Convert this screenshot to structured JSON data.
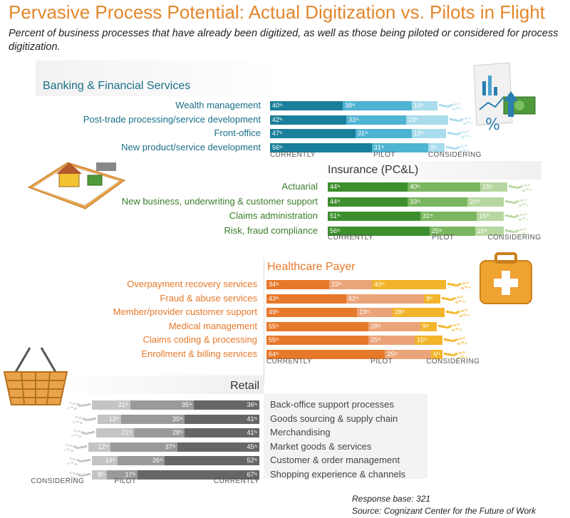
{
  "title": "Pervasive Process Potential: Actual Digitization vs. Pilots in Flight",
  "subtitle": "Percent of business processes that have already been digitized, as well as those being piloted or considered for process digitization.",
  "footer": {
    "base": "Response base: 321",
    "source": "Source: Cognizant Center for the Future of Work"
  },
  "colors": {
    "title": "#e3862b",
    "banking": [
      "#1a7f9a",
      "#4fb3d2",
      "#a9dcec"
    ],
    "insurance": [
      "#3d8f2e",
      "#7ab65f",
      "#b7d7a0"
    ],
    "healthcare": [
      "#e6782a",
      "#eba479",
      "#f2b42a"
    ],
    "retail": [
      "#666666",
      "#9a9a9a",
      "#c4c4c4"
    ]
  },
  "chart_data": [
    {
      "type": "bar",
      "stacked": true,
      "title": "Banking & Financial Services",
      "categories": [
        "Wealth management",
        "Post-trade processing/service development",
        "Front-office",
        "New product/service development"
      ],
      "series": [
        {
          "name": "CURRENTLY",
          "values": [
            40,
            42,
            47,
            56
          ]
        },
        {
          "name": "PILOT",
          "values": [
            38,
            33,
            31,
            31
          ]
        },
        {
          "name": "CONSIDERING",
          "values": [
            14,
            23,
            19,
            9
          ]
        }
      ],
      "xlim": [
        0,
        100
      ]
    },
    {
      "type": "bar",
      "stacked": true,
      "title": "Insurance (PC&L)",
      "categories": [
        "Actuarial",
        "New business, underwriting & customer support",
        "Claims administration",
        "Risk, fraud compliance"
      ],
      "series": [
        {
          "name": "CURRENTLY",
          "values": [
            44,
            44,
            51,
            56
          ]
        },
        {
          "name": "PILOT",
          "values": [
            40,
            33,
            31,
            25
          ]
        },
        {
          "name": "CONSIDERING",
          "values": [
            15,
            20,
            15,
            16
          ]
        }
      ],
      "xlim": [
        0,
        100
      ]
    },
    {
      "type": "bar",
      "stacked": true,
      "title": "Healthcare Payer",
      "categories": [
        "Overpayment recovery services",
        "Fraud & abuse services",
        "Member/provider customer support",
        "Medical management",
        "Claims coding & processing",
        "Enrollment & billing services"
      ],
      "series": [
        {
          "name": "CURRENTLY",
          "values": [
            34,
            43,
            49,
            55,
            55,
            64
          ]
        },
        {
          "name": "PILOT",
          "values": [
            23,
            42,
            19,
            28,
            25,
            25
          ]
        },
        {
          "name": "CONSIDERING",
          "values": [
            40,
            9,
            28,
            9,
            15,
            6
          ]
        }
      ],
      "xlim": [
        0,
        100
      ]
    },
    {
      "type": "bar",
      "stacked": true,
      "title": "Retail",
      "categories": [
        "Back-office support processes",
        "Goods sourcing & supply chain",
        "Merchandising",
        "Market goods & services",
        "Customer & order management",
        "Shopping experience & channels"
      ],
      "series": [
        {
          "name": "CURRENTLY",
          "values": [
            36,
            41,
            41,
            45,
            52,
            67
          ]
        },
        {
          "name": "PILOT",
          "values": [
            35,
            35,
            28,
            37,
            26,
            17
          ]
        },
        {
          "name": "CONSIDERING",
          "values": [
            21,
            13,
            21,
            12,
            14,
            8
          ]
        }
      ],
      "xlim": [
        0,
        100
      ]
    }
  ]
}
